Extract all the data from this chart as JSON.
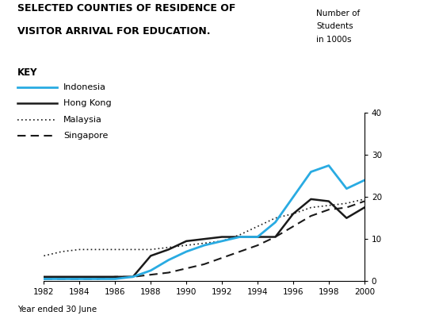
{
  "title_line1": "SELECTED COUNTIES OF RESIDENCE OF",
  "title_line2": "VISITOR ARRIVAL FOR EDUCATION.",
  "ylabel": "Number of\nStudents\nin 1000s",
  "xlabel": "Year ended 30 June",
  "ylim": [
    0,
    40
  ],
  "yticks": [
    0,
    10,
    20,
    30,
    40
  ],
  "years": [
    1982,
    1983,
    1984,
    1985,
    1986,
    1987,
    1988,
    1989,
    1990,
    1991,
    1992,
    1993,
    1994,
    1995,
    1996,
    1997,
    1998,
    1999,
    2000
  ],
  "xticks": [
    1982,
    1984,
    1986,
    1988,
    1990,
    1992,
    1994,
    1996,
    1998,
    2000
  ],
  "Indonesia": [
    0.5,
    0.5,
    0.5,
    0.5,
    0.5,
    1.0,
    2.5,
    5.0,
    7.0,
    8.5,
    9.5,
    10.5,
    10.5,
    14.0,
    20.0,
    26.0,
    27.5,
    22.0,
    24.0
  ],
  "HongKong": [
    1.0,
    1.0,
    1.0,
    1.0,
    1.0,
    1.0,
    6.0,
    7.5,
    9.5,
    10.0,
    10.5,
    10.5,
    10.5,
    10.5,
    16.0,
    19.5,
    19.0,
    15.0,
    17.5
  ],
  "Malaysia": [
    6.0,
    7.0,
    7.5,
    7.5,
    7.5,
    7.5,
    7.5,
    8.0,
    8.5,
    9.0,
    9.5,
    11.0,
    13.0,
    15.0,
    16.0,
    17.5,
    18.0,
    18.5,
    19.5
  ],
  "Singapore": [
    0.5,
    0.5,
    0.5,
    0.5,
    1.0,
    1.0,
    1.5,
    2.0,
    3.0,
    4.0,
    5.5,
    7.0,
    8.5,
    10.5,
    13.0,
    15.5,
    17.0,
    17.5,
    19.0
  ],
  "indonesia_color": "#29ABE2",
  "hongkong_color": "#1a1a1a",
  "malaysia_color": "#1a1a1a",
  "singapore_color": "#1a1a1a",
  "background_color": "#FFFFFF",
  "key_label": "KEY"
}
